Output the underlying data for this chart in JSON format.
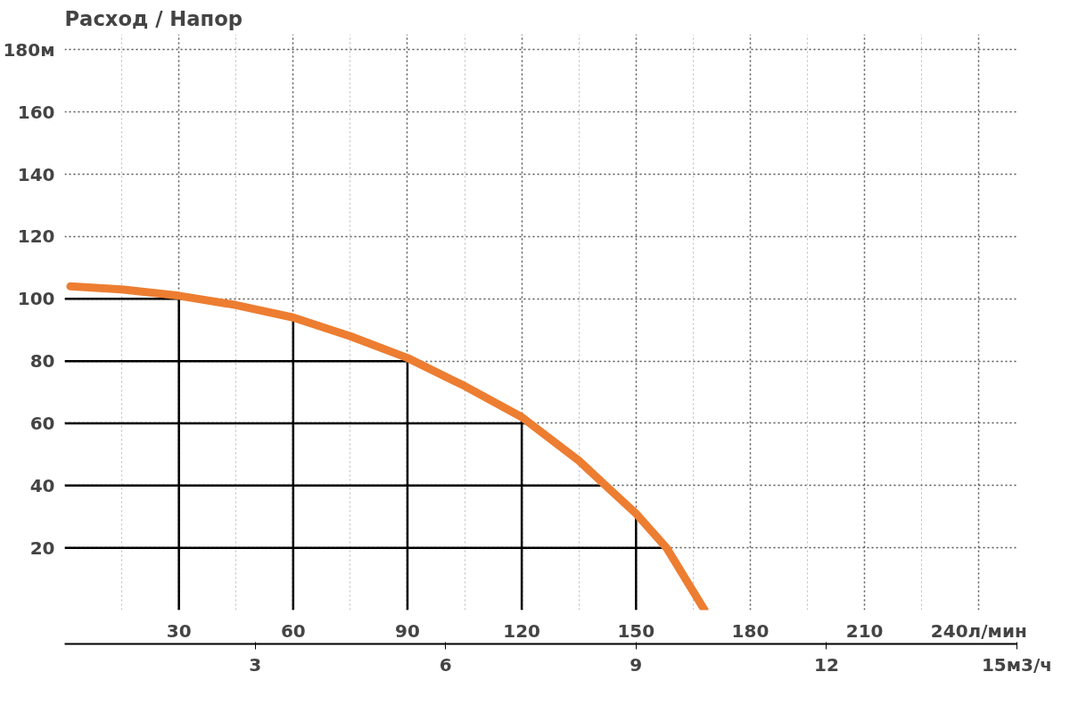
{
  "chart_data": {
    "type": "line",
    "title": "Расход / Напор",
    "series": [
      {
        "color": "#ed7d31",
        "x": [
          1.5,
          15,
          30,
          45,
          60,
          75,
          90,
          105,
          120,
          135,
          142,
          150,
          158,
          163,
          168
        ],
        "values": [
          104,
          103,
          101,
          98,
          94,
          88,
          81,
          72,
          62,
          48,
          40,
          31,
          20,
          10,
          0
        ]
      }
    ],
    "xlim": [
      0,
      250
    ],
    "xticks": [
      30,
      60,
      90,
      120,
      150,
      180,
      210,
      {
        "value": 240,
        "label": "240л/мин"
      }
    ],
    "x2lim": [
      0,
      15
    ],
    "x2ticks": [
      3,
      6,
      9,
      12,
      {
        "value": 15,
        "label": "15м3/ч"
      }
    ],
    "ylim": [
      0,
      185
    ],
    "yticks": [
      20,
      40,
      60,
      80,
      100,
      120,
      140,
      160,
      {
        "value": 180,
        "label": "180м"
      }
    ],
    "ref_lines": [
      {
        "axis": "y",
        "value": 100,
        "color": "#000000"
      },
      {
        "axis": "y",
        "value": 80,
        "color": "#000000"
      },
      {
        "axis": "y",
        "value": 60,
        "color": "#000000"
      },
      {
        "axis": "y",
        "value": 40,
        "color": "#000000"
      },
      {
        "axis": "y",
        "value": 20,
        "color": "#000000"
      },
      {
        "axis": "x",
        "value": 30,
        "color": "#000000"
      },
      {
        "axis": "x",
        "value": 60,
        "color": "#000000"
      },
      {
        "axis": "x",
        "value": 90,
        "color": "#000000"
      },
      {
        "axis": "x",
        "value": 120,
        "color": "#000000"
      },
      {
        "axis": "x",
        "value": 150,
        "color": "#000000"
      }
    ],
    "grid": true,
    "line_style": "solid",
    "marker": "none"
  }
}
